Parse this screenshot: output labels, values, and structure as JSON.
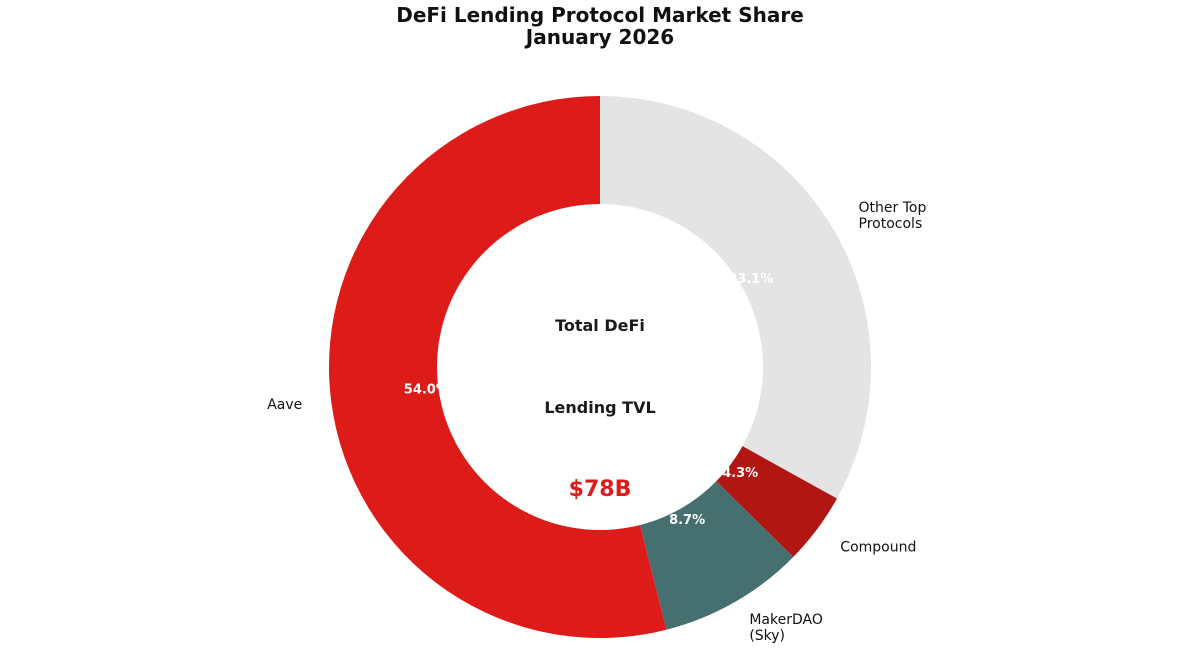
{
  "chart_data": {
    "type": "pie",
    "title": [
      "DeFi Lending Protocol Market Share",
      "January 2026"
    ],
    "slices": [
      {
        "name": "Other Top Protocols",
        "value": 33.1,
        "percent_label": "33.1%",
        "color": "#e4e4e4",
        "label_lines": [
          "Other Top",
          "Protocols"
        ]
      },
      {
        "name": "Compound",
        "value": 4.3,
        "percent_label": "4.3%",
        "color": "#b21613",
        "label_lines": [
          "Compound"
        ]
      },
      {
        "name": "MakerDAO (Sky)",
        "value": 8.7,
        "percent_label": "8.7%",
        "color": "#466f70",
        "label_lines": [
          "MakerDAO",
          "(Sky)"
        ]
      },
      {
        "name": "Aave",
        "value": 54.0,
        "percent_label": "54.0%",
        "color": "#dd1c1a",
        "label_lines": [
          "Aave"
        ]
      }
    ],
    "center_text": [
      "Total DeFi",
      "Lending TVL"
    ],
    "center_value": "$78B",
    "legend": "none"
  }
}
